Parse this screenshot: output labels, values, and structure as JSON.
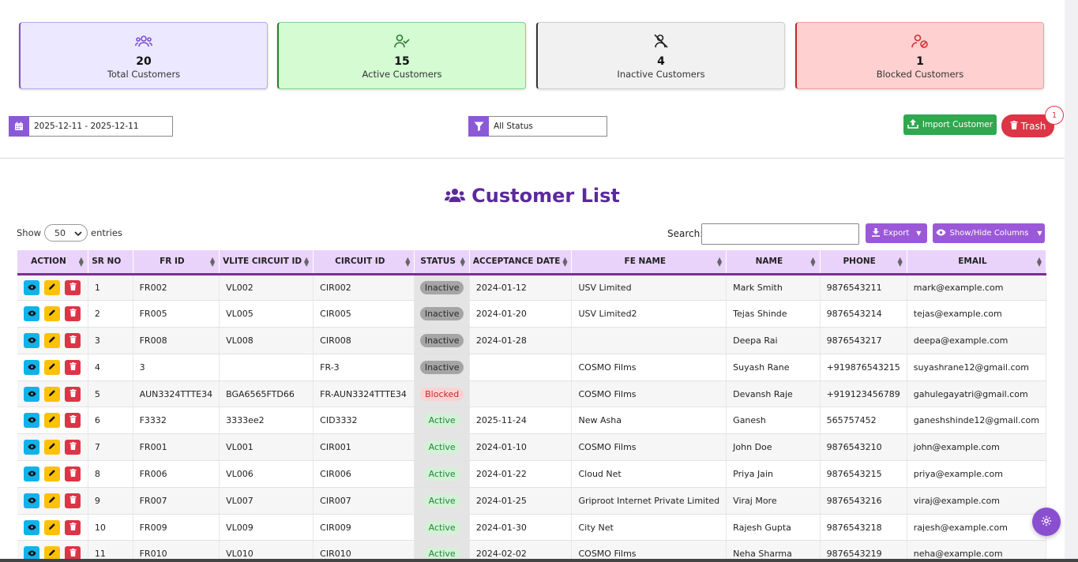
{
  "stats": [
    {
      "value": "20",
      "label": "Total Customers",
      "icon": "users-icon"
    },
    {
      "value": "15",
      "label": "Active Customers",
      "icon": "user-check-icon"
    },
    {
      "value": "4",
      "label": "Inactive Customers",
      "icon": "user-slash-icon"
    },
    {
      "value": "1",
      "label": "Blocked Customers",
      "icon": "user-blocked-icon"
    }
  ],
  "filters": {
    "date_range": "2025-12-11 - 2025-12-11",
    "status": "All Status"
  },
  "toolbar": {
    "import_label": "Import Customer",
    "trash_label": "Trash",
    "trash_count": "1"
  },
  "list": {
    "title": "Customer List",
    "show_label": "Show",
    "entries_value": "50",
    "entries_label": "entries",
    "search_label": "Search:",
    "search_value": "",
    "export_label": "Export",
    "columns_label": "Show/Hide Columns"
  },
  "table": {
    "headers": [
      "ACTION",
      "SR NO",
      "FR ID",
      "VLITE CIRCUIT ID",
      "CIRCUIT ID",
      "STATUS",
      "ACCEPTANCE DATE",
      "FE NAME",
      "NAME",
      "PHONE",
      "EMAIL"
    ],
    "rows": [
      {
        "sr": "1",
        "fr": "FR002",
        "vlite": "VL002",
        "circuit": "CIR002",
        "status": "Inactive",
        "date": "2024-01-12",
        "fe": "USV Limited",
        "name": "Mark Smith",
        "phone": "9876543211",
        "email": "mark@example.com"
      },
      {
        "sr": "2",
        "fr": "FR005",
        "vlite": "VL005",
        "circuit": "CIR005",
        "status": "Inactive",
        "date": "2024-01-20",
        "fe": "USV Limited2",
        "name": "Tejas Shinde",
        "phone": "9876543214",
        "email": "tejas@example.com"
      },
      {
        "sr": "3",
        "fr": "FR008",
        "vlite": "VL008",
        "circuit": "CIR008",
        "status": "Inactive",
        "date": "2024-01-28",
        "fe": "",
        "name": "Deepa Rai",
        "phone": "9876543217",
        "email": "deepa@example.com"
      },
      {
        "sr": "4",
        "fr": "3",
        "vlite": "",
        "circuit": "FR-3",
        "status": "Inactive",
        "date": "",
        "fe": "COSMO Films",
        "name": "Suyash Rane",
        "phone": "+919876543215",
        "email": "suyashrane12@gmail.com"
      },
      {
        "sr": "5",
        "fr": "AUN3324TTTE34",
        "vlite": "BGA6565FTD66",
        "circuit": "FR-AUN3324TTTE34",
        "status": "Blocked",
        "date": "",
        "fe": "COSMO Films",
        "name": "Devansh Raje",
        "phone": "+919123456789",
        "email": "gahulegayatri@gmail.com"
      },
      {
        "sr": "6",
        "fr": "F3332",
        "vlite": "3333ee2",
        "circuit": "CID3332",
        "status": "Active",
        "date": "2025-11-24",
        "fe": "New Asha",
        "name": "Ganesh",
        "phone": "565757452",
        "email": "ganeshshinde12@gmail.com"
      },
      {
        "sr": "7",
        "fr": "FR001",
        "vlite": "VL001",
        "circuit": "CIR001",
        "status": "Active",
        "date": "2024-01-10",
        "fe": "COSMO Films",
        "name": "John Doe",
        "phone": "9876543210",
        "email": "john@example.com"
      },
      {
        "sr": "8",
        "fr": "FR006",
        "vlite": "VL006",
        "circuit": "CIR006",
        "status": "Active",
        "date": "2024-01-22",
        "fe": "Cloud Net",
        "name": "Priya Jain",
        "phone": "9876543215",
        "email": "priya@example.com"
      },
      {
        "sr": "9",
        "fr": "FR007",
        "vlite": "VL007",
        "circuit": "CIR007",
        "status": "Active",
        "date": "2024-01-25",
        "fe": "Griproot Internet Private Limited",
        "name": "Viraj More",
        "phone": "9876543216",
        "email": "viraj@example.com"
      },
      {
        "sr": "10",
        "fr": "FR009",
        "vlite": "VL009",
        "circuit": "CIR009",
        "status": "Active",
        "date": "2024-01-30",
        "fe": "City Net",
        "name": "Rajesh Gupta",
        "phone": "9876543218",
        "email": "rajesh@example.com"
      },
      {
        "sr": "11",
        "fr": "FR010",
        "vlite": "VL010",
        "circuit": "CIR010",
        "status": "Active",
        "date": "2024-02-02",
        "fe": "COSMO Films",
        "name": "Neha Sharma",
        "phone": "9876543219",
        "email": "neha@example.com"
      }
    ]
  },
  "colors": {
    "accent": "#5b2a9c",
    "header_bg": "#ead3fb",
    "active": "#218838",
    "blocked": "#c62828",
    "inactive": "#a5a5a5"
  }
}
